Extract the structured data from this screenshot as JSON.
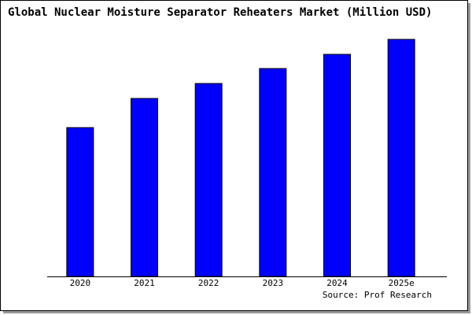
{
  "chart_data": {
    "type": "bar",
    "title": "Global Nuclear Moisture Separator Reheaters Market (Million USD)",
    "categories": [
      "2020",
      "2021",
      "2022",
      "2023",
      "2024",
      "2025e"
    ],
    "values": [
      189,
      226,
      245,
      264,
      282,
      301
    ],
    "color": "#0000ff",
    "source": "Source: Prof Research"
  }
}
